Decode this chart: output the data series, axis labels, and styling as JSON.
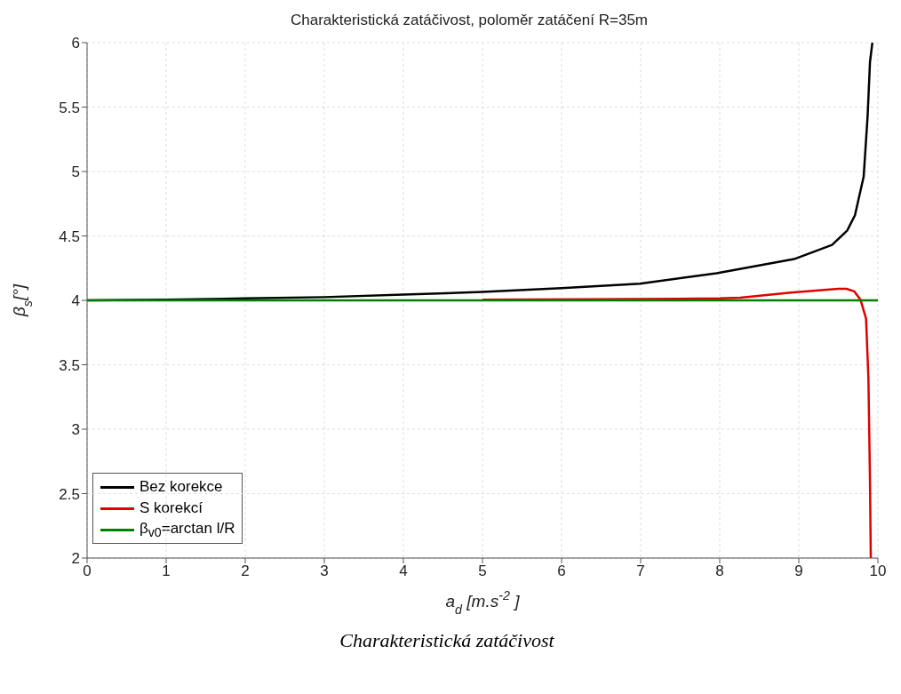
{
  "chart_data": {
    "type": "line",
    "title": "Charakteristická zatáčivost, poloměr zatáčení R=35m",
    "xlabel": "a$_{d}$ [m.s$^{-2}$ ]",
    "ylabel": "β$_{s}$[°]",
    "series": [
      {
        "name": "Bez korekce",
        "color": "#000000",
        "x": [
          0,
          1,
          2,
          3,
          4,
          5,
          6,
          6.99,
          7.96,
          8.94,
          9.42,
          9.61,
          9.71,
          9.82,
          9.87,
          9.9,
          9.93
        ],
        "values": [
          4.0,
          4.005,
          4.015,
          4.025,
          4.045,
          4.065,
          4.095,
          4.13,
          4.21,
          4.32,
          4.43,
          4.54,
          4.66,
          4.96,
          5.43,
          5.85,
          6.0
        ]
      },
      {
        "name": "S korekcí",
        "color": "#e00000",
        "x": [
          5,
          7,
          8,
          8.26,
          8.9,
          9.5,
          9.6,
          9.7,
          9.78,
          9.85,
          9.88,
          9.9,
          9.91
        ],
        "values": [
          4.005,
          4.01,
          4.015,
          4.02,
          4.06,
          4.09,
          4.09,
          4.07,
          4.005,
          3.86,
          3.4,
          2.6,
          2.0
        ]
      },
      {
        "name": "β$_{v0}$=arctan l/R",
        "color": "#008000",
        "x": [
          0,
          10
        ],
        "values": [
          4,
          4
        ]
      }
    ],
    "xlim": [
      0,
      10
    ],
    "xticks": [
      0,
      1,
      2,
      3,
      4,
      5,
      6,
      7,
      8,
      9,
      10
    ],
    "ylim": [
      2,
      6
    ],
    "yticks": [
      2,
      2.5,
      3,
      3.5,
      4,
      4.5,
      5,
      5.5,
      6
    ],
    "grid": true,
    "legend": "bottom left",
    "line_style": "solid",
    "marker": "none",
    "annotations": [
      "Charakteristická zatáčivost"
    ]
  }
}
